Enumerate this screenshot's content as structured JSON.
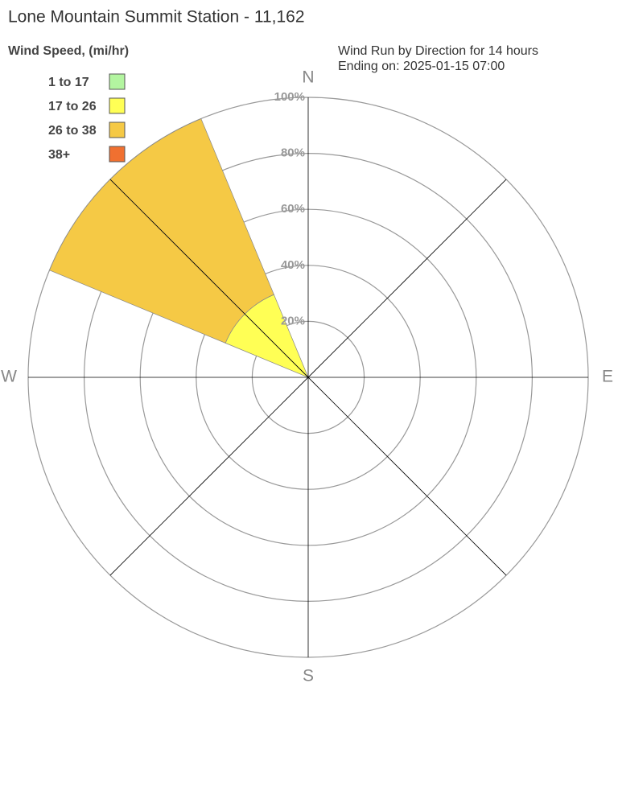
{
  "chart_data": {
    "type": "windrose",
    "title": "Lone Mountain Summit Station - 11,162",
    "legend_title": "Wind Speed, (mi/hr)",
    "subtitle": [
      "Wind Run by Direction for 14 hours",
      "Ending on: 2025-01-15 07:00"
    ],
    "compass": [
      "N",
      "E",
      "S",
      "W"
    ],
    "angles": [
      292.5,
      315
    ],
    "sector_width": 22.5,
    "series": [
      {
        "name": "1 to 17",
        "color": "#b3f5a0",
        "values": [
          0,
          0
        ]
      },
      {
        "name": "17 to 26",
        "color": "#ffff55",
        "values": [
          32,
          32
        ]
      },
      {
        "name": "26 to 38",
        "color": "#f5c945",
        "values": [
          68,
          68
        ]
      },
      {
        "name": "38+",
        "color": "#f07030",
        "values": [
          0,
          0
        ]
      }
    ],
    "rlim": [
      0,
      100
    ],
    "rticks": [
      {
        "value": 20,
        "label": "20%"
      },
      {
        "value": 40,
        "label": "40%"
      },
      {
        "value": 60,
        "label": "60%"
      },
      {
        "value": 80,
        "label": "80%"
      },
      {
        "value": 100,
        "label": "100%"
      }
    ]
  }
}
